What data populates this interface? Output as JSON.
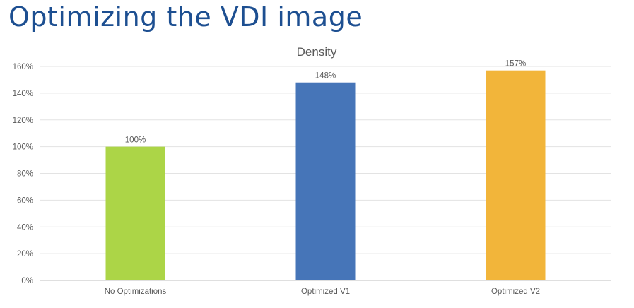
{
  "slide": {
    "title": "Optimizing the VDI image"
  },
  "chart_data": {
    "type": "bar",
    "title": "Density",
    "xlabel": "",
    "ylabel": "",
    "categories": [
      "No Optimizations",
      "Optimized V1",
      "Optimized V2"
    ],
    "values": [
      100,
      148,
      157
    ],
    "data_labels": [
      "100%",
      "148%",
      "157%"
    ],
    "bar_colors": [
      "#acd547",
      "#4675b8",
      "#f2b53a"
    ],
    "ylim": [
      0,
      160
    ],
    "yticks": [
      0,
      20,
      40,
      60,
      80,
      100,
      120,
      140,
      160
    ],
    "ytick_labels": [
      "0%",
      "20%",
      "40%",
      "60%",
      "80%",
      "100%",
      "120%",
      "140%",
      "160%"
    ],
    "grid": true,
    "legend": "none"
  }
}
